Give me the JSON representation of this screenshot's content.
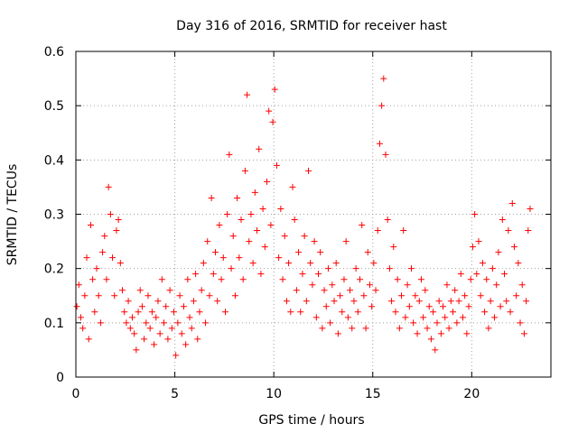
{
  "chart_data": {
    "type": "scatter",
    "title": "Day 316 of 2016, SRMTID for receiver hast",
    "xlabel": "GPS time / hours",
    "ylabel": "SRMTID / TECUs",
    "xlim": [
      0,
      24
    ],
    "ylim": [
      0,
      0.6
    ],
    "xticks": [
      0,
      5,
      10,
      15,
      20
    ],
    "xtick_labels": [
      "0",
      "5",
      "10",
      "15",
      "20"
    ],
    "yticks": [
      0,
      0.1,
      0.2,
      0.3,
      0.4,
      0.5,
      0.6
    ],
    "ytick_labels": [
      "0",
      "0.1",
      "0.2",
      "0.3",
      "0.4",
      "0.5",
      "0.6"
    ],
    "grid": true,
    "marker": "+",
    "color": "#ff0000",
    "series": [
      {
        "name": "SRMTID",
        "points": [
          [
            0.05,
            0.13
          ],
          [
            0.15,
            0.17
          ],
          [
            0.25,
            0.11
          ],
          [
            0.35,
            0.09
          ],
          [
            0.45,
            0.15
          ],
          [
            0.55,
            0.22
          ],
          [
            0.65,
            0.07
          ],
          [
            0.75,
            0.28
          ],
          [
            0.85,
            0.18
          ],
          [
            0.95,
            0.12
          ],
          [
            1.05,
            0.2
          ],
          [
            1.15,
            0.15
          ],
          [
            1.25,
            0.1
          ],
          [
            1.35,
            0.23
          ],
          [
            1.45,
            0.26
          ],
          [
            1.55,
            0.18
          ],
          [
            1.65,
            0.35
          ],
          [
            1.75,
            0.3
          ],
          [
            1.85,
            0.22
          ],
          [
            1.95,
            0.15
          ],
          [
            2.05,
            0.27
          ],
          [
            2.15,
            0.29
          ],
          [
            2.25,
            0.21
          ],
          [
            2.35,
            0.16
          ],
          [
            2.45,
            0.12
          ],
          [
            2.55,
            0.1
          ],
          [
            2.65,
            0.14
          ],
          [
            2.75,
            0.09
          ],
          [
            2.85,
            0.11
          ],
          [
            2.95,
            0.08
          ],
          [
            3.05,
            0.05
          ],
          [
            3.15,
            0.12
          ],
          [
            3.25,
            0.16
          ],
          [
            3.35,
            0.13
          ],
          [
            3.45,
            0.07
          ],
          [
            3.55,
            0.1
          ],
          [
            3.65,
            0.15
          ],
          [
            3.75,
            0.09
          ],
          [
            3.85,
            0.12
          ],
          [
            3.95,
            0.06
          ],
          [
            4.05,
            0.11
          ],
          [
            4.15,
            0.14
          ],
          [
            4.25,
            0.08
          ],
          [
            4.35,
            0.18
          ],
          [
            4.45,
            0.1
          ],
          [
            4.55,
            0.13
          ],
          [
            4.65,
            0.07
          ],
          [
            4.75,
            0.16
          ],
          [
            4.85,
            0.09
          ],
          [
            4.95,
            0.12
          ],
          [
            5.05,
            0.04
          ],
          [
            5.15,
            0.1
          ],
          [
            5.25,
            0.15
          ],
          [
            5.35,
            0.08
          ],
          [
            5.45,
            0.13
          ],
          [
            5.55,
            0.06
          ],
          [
            5.65,
            0.18
          ],
          [
            5.75,
            0.11
          ],
          [
            5.85,
            0.09
          ],
          [
            5.95,
            0.14
          ],
          [
            6.05,
            0.19
          ],
          [
            6.15,
            0.07
          ],
          [
            6.25,
            0.12
          ],
          [
            6.35,
            0.16
          ],
          [
            6.45,
            0.21
          ],
          [
            6.55,
            0.1
          ],
          [
            6.65,
            0.25
          ],
          [
            6.75,
            0.15
          ],
          [
            6.85,
            0.33
          ],
          [
            6.95,
            0.19
          ],
          [
            7.05,
            0.23
          ],
          [
            7.15,
            0.14
          ],
          [
            7.25,
            0.28
          ],
          [
            7.35,
            0.18
          ],
          [
            7.45,
            0.22
          ],
          [
            7.55,
            0.12
          ],
          [
            7.65,
            0.3
          ],
          [
            7.75,
            0.41
          ],
          [
            7.85,
            0.2
          ],
          [
            7.95,
            0.26
          ],
          [
            8.05,
            0.15
          ],
          [
            8.15,
            0.33
          ],
          [
            8.25,
            0.22
          ],
          [
            8.35,
            0.29
          ],
          [
            8.45,
            0.18
          ],
          [
            8.55,
            0.38
          ],
          [
            8.65,
            0.52
          ],
          [
            8.75,
            0.25
          ],
          [
            8.85,
            0.3
          ],
          [
            8.95,
            0.21
          ],
          [
            9.05,
            0.34
          ],
          [
            9.15,
            0.27
          ],
          [
            9.25,
            0.42
          ],
          [
            9.35,
            0.19
          ],
          [
            9.45,
            0.31
          ],
          [
            9.55,
            0.24
          ],
          [
            9.65,
            0.36
          ],
          [
            9.75,
            0.49
          ],
          [
            9.85,
            0.28
          ],
          [
            9.95,
            0.47
          ],
          [
            10.05,
            0.53
          ],
          [
            10.15,
            0.39
          ],
          [
            10.25,
            0.22
          ],
          [
            10.35,
            0.31
          ],
          [
            10.45,
            0.18
          ],
          [
            10.55,
            0.26
          ],
          [
            10.65,
            0.14
          ],
          [
            10.75,
            0.21
          ],
          [
            10.85,
            0.12
          ],
          [
            10.95,
            0.35
          ],
          [
            11.05,
            0.29
          ],
          [
            11.15,
            0.16
          ],
          [
            11.25,
            0.23
          ],
          [
            11.35,
            0.12
          ],
          [
            11.45,
            0.19
          ],
          [
            11.55,
            0.26
          ],
          [
            11.65,
            0.14
          ],
          [
            11.75,
            0.38
          ],
          [
            11.85,
            0.21
          ],
          [
            11.95,
            0.17
          ],
          [
            12.05,
            0.25
          ],
          [
            12.15,
            0.11
          ],
          [
            12.25,
            0.19
          ],
          [
            12.35,
            0.23
          ],
          [
            12.45,
            0.09
          ],
          [
            12.55,
            0.16
          ],
          [
            12.65,
            0.13
          ],
          [
            12.75,
            0.2
          ],
          [
            12.85,
            0.1
          ],
          [
            12.95,
            0.17
          ],
          [
            13.05,
            0.14
          ],
          [
            13.15,
            0.21
          ],
          [
            13.25,
            0.08
          ],
          [
            13.35,
            0.15
          ],
          [
            13.45,
            0.12
          ],
          [
            13.55,
            0.18
          ],
          [
            13.65,
            0.25
          ],
          [
            13.75,
            0.11
          ],
          [
            13.85,
            0.16
          ],
          [
            13.95,
            0.09
          ],
          [
            14.05,
            0.14
          ],
          [
            14.15,
            0.2
          ],
          [
            14.25,
            0.12
          ],
          [
            14.35,
            0.18
          ],
          [
            14.45,
            0.28
          ],
          [
            14.55,
            0.15
          ],
          [
            14.65,
            0.09
          ],
          [
            14.75,
            0.23
          ],
          [
            14.85,
            0.17
          ],
          [
            14.95,
            0.13
          ],
          [
            15.05,
            0.21
          ],
          [
            15.15,
            0.16
          ],
          [
            15.25,
            0.27
          ],
          [
            15.35,
            0.43
          ],
          [
            15.45,
            0.5
          ],
          [
            15.55,
            0.55
          ],
          [
            15.65,
            0.41
          ],
          [
            15.75,
            0.29
          ],
          [
            15.85,
            0.2
          ],
          [
            15.95,
            0.14
          ],
          [
            16.05,
            0.24
          ],
          [
            16.15,
            0.12
          ],
          [
            16.25,
            0.18
          ],
          [
            16.35,
            0.09
          ],
          [
            16.45,
            0.15
          ],
          [
            16.55,
            0.27
          ],
          [
            16.65,
            0.11
          ],
          [
            16.75,
            0.17
          ],
          [
            16.85,
            0.13
          ],
          [
            16.95,
            0.2
          ],
          [
            17.05,
            0.1
          ],
          [
            17.15,
            0.15
          ],
          [
            17.25,
            0.08
          ],
          [
            17.35,
            0.14
          ],
          [
            17.45,
            0.18
          ],
          [
            17.55,
            0.11
          ],
          [
            17.65,
            0.16
          ],
          [
            17.75,
            0.09
          ],
          [
            17.85,
            0.13
          ],
          [
            17.95,
            0.07
          ],
          [
            18.05,
            0.12
          ],
          [
            18.15,
            0.05
          ],
          [
            18.25,
            0.1
          ],
          [
            18.35,
            0.14
          ],
          [
            18.45,
            0.08
          ],
          [
            18.55,
            0.13
          ],
          [
            18.65,
            0.11
          ],
          [
            18.75,
            0.17
          ],
          [
            18.85,
            0.09
          ],
          [
            18.95,
            0.14
          ],
          [
            19.05,
            0.12
          ],
          [
            19.15,
            0.16
          ],
          [
            19.25,
            0.1
          ],
          [
            19.35,
            0.14
          ],
          [
            19.45,
            0.19
          ],
          [
            19.55,
            0.11
          ],
          [
            19.65,
            0.15
          ],
          [
            19.75,
            0.08
          ],
          [
            19.85,
            0.13
          ],
          [
            19.95,
            0.18
          ],
          [
            20.05,
            0.24
          ],
          [
            20.15,
            0.3
          ],
          [
            20.25,
            0.19
          ],
          [
            20.35,
            0.25
          ],
          [
            20.45,
            0.15
          ],
          [
            20.55,
            0.21
          ],
          [
            20.65,
            0.12
          ],
          [
            20.75,
            0.18
          ],
          [
            20.85,
            0.09
          ],
          [
            20.95,
            0.14
          ],
          [
            21.05,
            0.2
          ],
          [
            21.15,
            0.11
          ],
          [
            21.25,
            0.17
          ],
          [
            21.35,
            0.23
          ],
          [
            21.45,
            0.13
          ],
          [
            21.55,
            0.29
          ],
          [
            21.65,
            0.19
          ],
          [
            21.75,
            0.14
          ],
          [
            21.85,
            0.27
          ],
          [
            21.95,
            0.12
          ],
          [
            22.05,
            0.32
          ],
          [
            22.15,
            0.24
          ],
          [
            22.25,
            0.15
          ],
          [
            22.35,
            0.21
          ],
          [
            22.45,
            0.1
          ],
          [
            22.55,
            0.17
          ],
          [
            22.65,
            0.08
          ],
          [
            22.75,
            0.14
          ],
          [
            22.85,
            0.27
          ],
          [
            22.95,
            0.31
          ]
        ]
      }
    ]
  }
}
